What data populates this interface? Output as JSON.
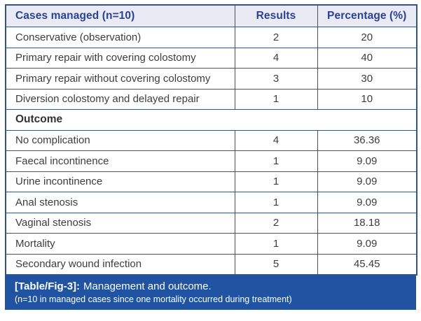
{
  "colors": {
    "border": "#35547e",
    "header_bg": "#e9eaf3",
    "header_text": "#2b4194",
    "body_text": "#3d3d3d",
    "caption_bg": "#2053a1",
    "caption_text": "#ffffff"
  },
  "table": {
    "columns": [
      "Cases managed (n=10)",
      "Results",
      "Percentage (%)"
    ],
    "management_rows": [
      {
        "label": "Conservative (observation)",
        "results": "2",
        "percentage": "20"
      },
      {
        "label": "Primary repair with covering colostomy",
        "results": "4",
        "percentage": "40"
      },
      {
        "label": "Primary repair without covering colostomy",
        "results": "3",
        "percentage": "30"
      },
      {
        "label": "Diversion colostomy and delayed repair",
        "results": "1",
        "percentage": "10"
      }
    ],
    "section_header": "Outcome",
    "outcome_rows": [
      {
        "label": "No complication",
        "results": "4",
        "percentage": "36.36"
      },
      {
        "label": "Faecal incontinence",
        "results": "1",
        "percentage": "9.09"
      },
      {
        "label": "Urine incontinence",
        "results": "1",
        "percentage": "9.09"
      },
      {
        "label": "Anal stenosis",
        "results": "1",
        "percentage": "9.09"
      },
      {
        "label": "Vaginal stenosis",
        "results": "2",
        "percentage": "18.18"
      },
      {
        "label": "Mortality",
        "results": "1",
        "percentage": "9.09"
      },
      {
        "label": "Secondary wound infection",
        "results": "5",
        "percentage": "45.45"
      }
    ]
  },
  "caption": {
    "tag": "[Table/Fig-3]:",
    "title": "Management and outcome.",
    "note": "(n=10 in managed cases since one mortality occurred during treatment)"
  }
}
